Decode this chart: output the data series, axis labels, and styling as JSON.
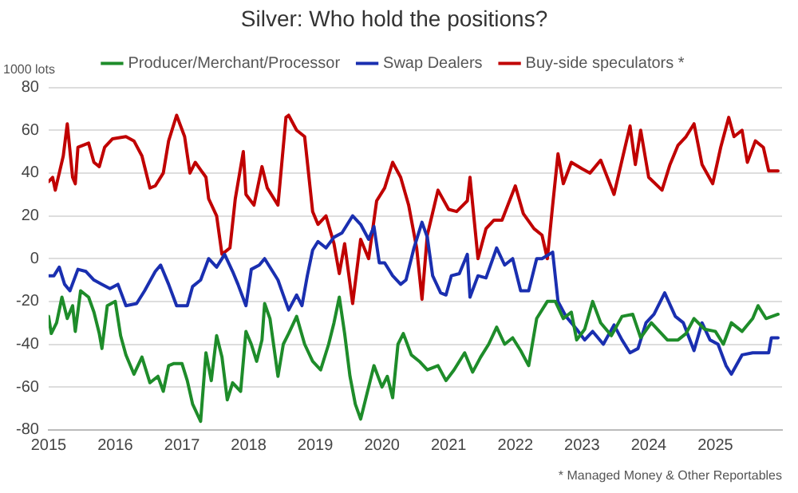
{
  "chart_data": {
    "type": "line",
    "title": "Silver: Who hold the positions?",
    "ylabel": "1000 lots",
    "annotations": [
      "* Managed Money & Other Reportables"
    ],
    "xlim": [
      2015,
      2026
    ],
    "xticks": [
      2015,
      2016,
      2017,
      2018,
      2019,
      2020,
      2021,
      2022,
      2023,
      2024,
      2025
    ],
    "ylim": [
      -80,
      80
    ],
    "yticks": [
      -80,
      -60,
      -40,
      -20,
      0,
      20,
      40,
      60,
      80
    ],
    "grid": "y",
    "legend": "top",
    "marker": "none",
    "line_style": "solid",
    "series": [
      {
        "name": "Producer/Merchant/Processor",
        "color": "#1e8c2a",
        "x": [
          2015.0,
          2015.04,
          2015.12,
          2015.2,
          2015.28,
          2015.36,
          2015.4,
          2015.48,
          2015.6,
          2015.68,
          2015.76,
          2015.8,
          2015.88,
          2016.0,
          2016.08,
          2016.16,
          2016.28,
          2016.4,
          2016.52,
          2016.64,
          2016.72,
          2016.8,
          2016.88,
          2017.0,
          2017.08,
          2017.16,
          2017.28,
          2017.36,
          2017.44,
          2017.52,
          2017.6,
          2017.68,
          2017.76,
          2017.88,
          2017.96,
          2018.04,
          2018.12,
          2018.2,
          2018.24,
          2018.32,
          2018.44,
          2018.52,
          2018.6,
          2018.72,
          2018.84,
          2018.96,
          2019.08,
          2019.2,
          2019.28,
          2019.36,
          2019.44,
          2019.52,
          2019.6,
          2019.68,
          2019.76,
          2019.88,
          2020.0,
          2020.08,
          2020.16,
          2020.24,
          2020.32,
          2020.44,
          2020.56,
          2020.68,
          2020.84,
          2020.96,
          2021.08,
          2021.24,
          2021.36,
          2021.48,
          2021.6,
          2021.72,
          2021.84,
          2021.96,
          2022.08,
          2022.2,
          2022.32,
          2022.48,
          2022.6,
          2022.72,
          2022.84,
          2022.92,
          2023.04,
          2023.16,
          2023.28,
          2023.44,
          2023.6,
          2023.76,
          2023.88,
          2024.04,
          2024.16,
          2024.28,
          2024.44,
          2024.56,
          2024.68,
          2024.84,
          2025.0,
          2025.12,
          2025.24,
          2025.4,
          2025.56,
          2025.64,
          2025.76,
          2025.94
        ],
        "values": [
          -27,
          -35,
          -30,
          -18,
          -28,
          -22,
          -34,
          -15,
          -18,
          -25,
          -35,
          -42,
          -22,
          -20,
          -36,
          -45,
          -54,
          -46,
          -58,
          -55,
          -62,
          -50,
          -49,
          -49,
          -57,
          -68,
          -76,
          -44,
          -57,
          -36,
          -46,
          -66,
          -58,
          -62,
          -34,
          -40,
          -48,
          -38,
          -21,
          -28,
          -55,
          -40,
          -35,
          -27,
          -40,
          -48,
          -52,
          -40,
          -30,
          -18,
          -35,
          -55,
          -68,
          -75,
          -65,
          -50,
          -60,
          -55,
          -65,
          -40,
          -35,
          -45,
          -48,
          -52,
          -50,
          -57,
          -52,
          -44,
          -53,
          -46,
          -40,
          -32,
          -40,
          -37,
          -43,
          -50,
          -28,
          -20,
          -20,
          -28,
          -25,
          -38,
          -33,
          -20,
          -30,
          -36,
          -27,
          -26,
          -37,
          -30,
          -34,
          -38,
          -38,
          -35,
          -28,
          -33,
          -34,
          -40,
          -30,
          -34,
          -28,
          -22,
          -28,
          -26
        ]
      },
      {
        "name": "Swap Dealers",
        "color": "#1a2fb0",
        "x": [
          2015.0,
          2015.08,
          2015.16,
          2015.24,
          2015.32,
          2015.44,
          2015.56,
          2015.68,
          2015.8,
          2015.92,
          2016.04,
          2016.16,
          2016.32,
          2016.44,
          2016.6,
          2016.68,
          2016.8,
          2016.92,
          2017.08,
          2017.16,
          2017.28,
          2017.4,
          2017.52,
          2017.64,
          2017.76,
          2017.84,
          2017.96,
          2018.04,
          2018.16,
          2018.24,
          2018.36,
          2018.44,
          2018.52,
          2018.6,
          2018.72,
          2018.8,
          2018.88,
          2018.96,
          2019.04,
          2019.16,
          2019.28,
          2019.4,
          2019.56,
          2019.68,
          2019.8,
          2019.88,
          2019.96,
          2020.04,
          2020.16,
          2020.28,
          2020.36,
          2020.48,
          2020.6,
          2020.68,
          2020.76,
          2020.88,
          2020.96,
          2021.04,
          2021.16,
          2021.28,
          2021.32,
          2021.44,
          2021.56,
          2021.72,
          2021.84,
          2021.96,
          2022.08,
          2022.2,
          2022.32,
          2022.4,
          2022.56,
          2022.64,
          2022.76,
          2022.92,
          2023.04,
          2023.16,
          2023.32,
          2023.48,
          2023.6,
          2023.72,
          2023.84,
          2023.96,
          2024.08,
          2024.24,
          2024.4,
          2024.52,
          2024.68,
          2024.8,
          2024.92,
          2025.04,
          2025.16,
          2025.24,
          2025.4,
          2025.56,
          2025.8,
          2025.84,
          2025.94
        ],
        "values": [
          -8,
          -8,
          -4,
          -12,
          -15,
          -5,
          -6,
          -10,
          -12,
          -14,
          -12,
          -22,
          -21,
          -15,
          -6,
          -3,
          -12,
          -22,
          -22,
          -13,
          -10,
          0,
          -4,
          2,
          -6,
          -12,
          -22,
          -5,
          -3,
          0,
          -6,
          -10,
          -17,
          -24,
          -17,
          -22,
          -8,
          4,
          8,
          5,
          10,
          12,
          20,
          16,
          9,
          15,
          -2,
          -2,
          -8,
          -12,
          -10,
          5,
          17,
          10,
          -8,
          -16,
          -17,
          -8,
          -7,
          2,
          -18,
          -8,
          -9,
          5,
          -3,
          0,
          -15,
          -15,
          0,
          0,
          3,
          -20,
          -27,
          -33,
          -38,
          -34,
          -40,
          -31,
          -38,
          -44,
          -42,
          -30,
          -26,
          -16,
          -27,
          -30,
          -43,
          -30,
          -38,
          -40,
          -50,
          -54,
          -45,
          -44,
          -44,
          -37,
          -37
        ]
      },
      {
        "name": "Buy-side speculators *",
        "color": "#c00000",
        "x": [
          2015.0,
          2015.06,
          2015.1,
          2015.16,
          2015.22,
          2015.28,
          2015.36,
          2015.4,
          2015.44,
          2015.6,
          2015.68,
          2015.76,
          2015.84,
          2015.96,
          2016.16,
          2016.28,
          2016.4,
          2016.52,
          2016.6,
          2016.72,
          2016.8,
          2016.92,
          2017.04,
          2017.12,
          2017.2,
          2017.36,
          2017.4,
          2017.52,
          2017.6,
          2017.72,
          2017.8,
          2017.92,
          2017.96,
          2018.08,
          2018.2,
          2018.28,
          2018.44,
          2018.56,
          2018.6,
          2018.72,
          2018.84,
          2018.96,
          2019.04,
          2019.16,
          2019.28,
          2019.36,
          2019.44,
          2019.56,
          2019.68,
          2019.8,
          2019.92,
          2020.04,
          2020.16,
          2020.28,
          2020.4,
          2020.52,
          2020.6,
          2020.68,
          2020.84,
          2021.0,
          2021.12,
          2021.28,
          2021.32,
          2021.44,
          2021.56,
          2021.68,
          2021.8,
          2022.0,
          2022.12,
          2022.28,
          2022.4,
          2022.48,
          2022.56,
          2022.64,
          2022.72,
          2022.84,
          2023.0,
          2023.12,
          2023.28,
          2023.48,
          2023.6,
          2023.72,
          2023.8,
          2023.88,
          2024.0,
          2024.2,
          2024.32,
          2024.44,
          2024.56,
          2024.68,
          2024.8,
          2024.96,
          2025.08,
          2025.2,
          2025.28,
          2025.4,
          2025.48,
          2025.6,
          2025.72,
          2025.8,
          2025.94
        ],
        "values": [
          36,
          38,
          32,
          40,
          48,
          63,
          38,
          35,
          52,
          54,
          45,
          43,
          52,
          56,
          57,
          55,
          48,
          33,
          34,
          40,
          55,
          67,
          57,
          40,
          45,
          38,
          28,
          20,
          2,
          5,
          28,
          50,
          30,
          25,
          43,
          33,
          25,
          66,
          67,
          60,
          57,
          22,
          16,
          20,
          7,
          -7,
          7,
          -21,
          9,
          0,
          27,
          33,
          45,
          38,
          25,
          5,
          -19,
          11,
          32,
          23,
          22,
          27,
          38,
          0,
          14,
          18,
          18,
          34,
          21,
          14,
          11,
          0,
          25,
          49,
          35,
          45,
          42,
          40,
          46,
          30,
          46,
          62,
          44,
          60,
          38,
          32,
          44,
          53,
          57,
          63,
          44,
          35,
          52,
          66,
          57,
          60,
          45,
          55,
          52,
          41,
          41
        ]
      }
    ]
  }
}
